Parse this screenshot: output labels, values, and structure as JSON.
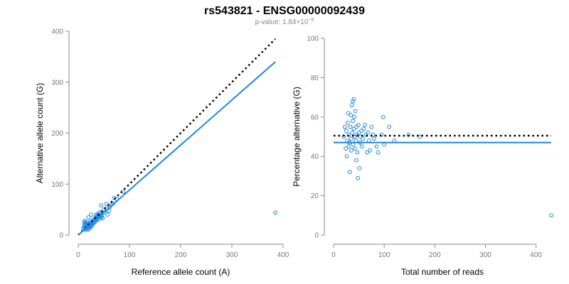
{
  "figure": {
    "title": "rs543821 - ENSG00000092439",
    "subtitle_prefix": "p-value: 1.84",
    "subtitle_times": "×10",
    "subtitle_exponent": "−5"
  },
  "colors": {
    "series": "#1e88e5",
    "reference": "#000000",
    "axis": "#888888"
  },
  "chart_data": [
    {
      "type": "scatter",
      "title": "",
      "xlabel": "Reference allele count (A)",
      "ylabel": "Alternative allele count (G)",
      "xlim": [
        0,
        400
      ],
      "ylim": [
        0,
        400
      ],
      "xticks": [
        0,
        100,
        200,
        300,
        400
      ],
      "yticks": [
        0,
        100,
        200,
        300,
        400
      ],
      "points": [
        [
          10,
          12
        ],
        [
          11,
          15
        ],
        [
          12,
          18
        ],
        [
          12,
          22
        ],
        [
          13,
          10
        ],
        [
          13,
          25
        ],
        [
          14,
          14
        ],
        [
          14,
          20
        ],
        [
          15,
          16
        ],
        [
          15,
          24
        ],
        [
          16,
          12
        ],
        [
          16,
          18
        ],
        [
          17,
          20
        ],
        [
          17,
          26
        ],
        [
          18,
          14
        ],
        [
          18,
          22
        ],
        [
          19,
          17
        ],
        [
          19,
          10
        ],
        [
          20,
          21
        ],
        [
          20,
          15
        ],
        [
          21,
          19
        ],
        [
          22,
          23
        ],
        [
          22,
          13
        ],
        [
          23,
          18
        ],
        [
          24,
          20
        ],
        [
          24,
          27
        ],
        [
          25,
          16
        ],
        [
          25,
          22
        ],
        [
          26,
          24
        ],
        [
          27,
          19
        ],
        [
          28,
          28
        ],
        [
          28,
          21
        ],
        [
          29,
          25
        ],
        [
          30,
          30
        ],
        [
          30,
          23
        ],
        [
          31,
          27
        ],
        [
          32,
          33
        ],
        [
          33,
          26
        ],
        [
          34,
          30
        ],
        [
          35,
          36
        ],
        [
          36,
          29
        ],
        [
          37,
          32
        ],
        [
          38,
          40
        ],
        [
          39,
          35
        ],
        [
          40,
          42
        ],
        [
          41,
          31
        ],
        [
          42,
          38
        ],
        [
          43,
          45
        ],
        [
          44,
          34
        ],
        [
          45,
          40
        ],
        [
          46,
          36
        ],
        [
          47,
          43
        ],
        [
          48,
          33
        ],
        [
          50,
          50
        ],
        [
          52,
          45
        ],
        [
          55,
          52
        ],
        [
          57,
          40
        ],
        [
          60,
          47
        ],
        [
          62,
          55
        ],
        [
          65,
          60
        ],
        [
          68,
          62
        ],
        [
          70,
          73
        ],
        [
          75,
          71
        ],
        [
          88,
          85
        ],
        [
          20,
          35
        ],
        [
          25,
          40
        ],
        [
          45,
          58
        ],
        [
          55,
          61
        ],
        [
          35,
          40
        ],
        [
          12,
          28
        ],
        [
          385,
          44
        ]
      ],
      "fit_line": {
        "name": "fit",
        "x": [
          0,
          385
        ],
        "y": [
          0,
          340
        ]
      },
      "reference_line": {
        "name": "expected",
        "x": [
          0,
          385
        ],
        "y": [
          0,
          385
        ]
      }
    },
    {
      "type": "scatter",
      "title": "",
      "xlabel": "Total number of reads",
      "ylabel": "Percentage alternative (G)",
      "xlim": [
        0,
        430
      ],
      "ylim": [
        0,
        100
      ],
      "xticks": [
        0,
        100,
        200,
        300,
        400
      ],
      "yticks": [
        0,
        20,
        40,
        60,
        80,
        100
      ],
      "points": [
        [
          20,
          50
        ],
        [
          22,
          55
        ],
        [
          24,
          44
        ],
        [
          25,
          53
        ],
        [
          26,
          40
        ],
        [
          27,
          48
        ],
        [
          28,
          57
        ],
        [
          29,
          62
        ],
        [
          30,
          45
        ],
        [
          30,
          51
        ],
        [
          31,
          47
        ],
        [
          32,
          32
        ],
        [
          33,
          55
        ],
        [
          34,
          61
        ],
        [
          35,
          49
        ],
        [
          35,
          43
        ],
        [
          36,
          66
        ],
        [
          37,
          52
        ],
        [
          38,
          68
        ],
        [
          38,
          58
        ],
        [
          39,
          46
        ],
        [
          40,
          54
        ],
        [
          40,
          69
        ],
        [
          41,
          60
        ],
        [
          42,
          50
        ],
        [
          42,
          44
        ],
        [
          43,
          63
        ],
        [
          44,
          48
        ],
        [
          45,
          55
        ],
        [
          45,
          38
        ],
        [
          46,
          51
        ],
        [
          47,
          42
        ],
        [
          48,
          29
        ],
        [
          49,
          56
        ],
        [
          50,
          52
        ],
        [
          51,
          34
        ],
        [
          52,
          47
        ],
        [
          53,
          50
        ],
        [
          55,
          53
        ],
        [
          56,
          45
        ],
        [
          58,
          49
        ],
        [
          60,
          54
        ],
        [
          62,
          56
        ],
        [
          64,
          51
        ],
        [
          66,
          42
        ],
        [
          68,
          52
        ],
        [
          70,
          48
        ],
        [
          72,
          43
        ],
        [
          75,
          55
        ],
        [
          78,
          51
        ],
        [
          80,
          49
        ],
        [
          85,
          45
        ],
        [
          88,
          42
        ],
        [
          95,
          51
        ],
        [
          98,
          60
        ],
        [
          100,
          46
        ],
        [
          110,
          55
        ],
        [
          120,
          48
        ],
        [
          148,
          51
        ],
        [
          170,
          50
        ],
        [
          430,
          10
        ]
      ],
      "fit_line": {
        "name": "fit",
        "x": [
          0,
          430
        ],
        "y": [
          47,
          47
        ]
      },
      "reference_line": {
        "name": "expected",
        "x": [
          0,
          430
        ],
        "y": [
          50.5,
          50.5
        ]
      }
    }
  ]
}
